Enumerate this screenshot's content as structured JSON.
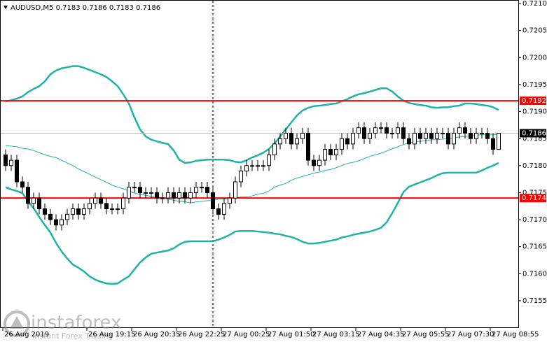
{
  "chart_data": {
    "type": "candlestick",
    "title": "AUDUSD,M5  0.7183 0.7186 0.7183 0.7186",
    "candle_color": "#000000",
    "open": [
      0.7182,
      0.718,
      0.7181,
      0.7177,
      0.7176,
      0.7173,
      0.7174,
      0.7172,
      0.7171,
      0.717,
      0.7169,
      0.717,
      0.7171,
      0.7172,
      0.7171,
      0.7172,
      0.7173,
      0.7174,
      0.7173,
      0.7172,
      0.7172,
      0.7172,
      0.7174,
      0.7176,
      0.7176,
      0.7175,
      0.7175,
      0.7175,
      0.7174,
      0.7174,
      0.7175,
      0.7174,
      0.7175,
      0.7174,
      0.7175,
      0.7176,
      0.7176,
      0.7175,
      0.7172,
      0.7171,
      0.7173,
      0.7174,
      0.7177,
      0.7179,
      0.718,
      0.718,
      0.718,
      0.718,
      0.7182,
      0.7184,
      0.7185,
      0.7186,
      0.7184,
      0.7185,
      0.7186,
      0.7181,
      0.718,
      0.7181,
      0.7183,
      0.7182,
      0.7183,
      0.7185,
      0.7184,
      0.7186,
      0.7187,
      0.7185,
      0.7186,
      0.7187,
      0.7187,
      0.7186,
      0.7186,
      0.7187,
      0.7185,
      0.7184,
      0.7186,
      0.7185,
      0.7186,
      0.7185,
      0.7186,
      0.7186,
      0.7184,
      0.7186,
      0.7187,
      0.7186,
      0.7185,
      0.7186,
      0.7186,
      0.7185,
      0.7183
    ],
    "high": [
      0.7183,
      0.7182,
      0.7182,
      0.7178,
      0.7177,
      0.7175,
      0.7175,
      0.7173,
      0.7172,
      0.7171,
      0.7171,
      0.7172,
      0.7173,
      0.7173,
      0.7173,
      0.7174,
      0.7175,
      0.7175,
      0.7174,
      0.7173,
      0.7173,
      0.7175,
      0.7177,
      0.7177,
      0.7177,
      0.7176,
      0.7176,
      0.7176,
      0.7175,
      0.7176,
      0.7176,
      0.7176,
      0.7176,
      0.7176,
      0.7177,
      0.7177,
      0.7177,
      0.7176,
      0.7173,
      0.7174,
      0.7175,
      0.7178,
      0.718,
      0.7181,
      0.7181,
      0.7181,
      0.7181,
      0.7183,
      0.7185,
      0.7186,
      0.7187,
      0.7187,
      0.7186,
      0.7187,
      0.7187,
      0.7182,
      0.7182,
      0.7184,
      0.7184,
      0.7184,
      0.7186,
      0.7186,
      0.7187,
      0.7188,
      0.7188,
      0.7187,
      0.7188,
      0.7188,
      0.7188,
      0.7187,
      0.7188,
      0.7188,
      0.7186,
      0.7187,
      0.7187,
      0.7187,
      0.7187,
      0.7187,
      0.7187,
      0.7187,
      0.7187,
      0.7188,
      0.7188,
      0.7187,
      0.7187,
      0.7187,
      0.7187,
      0.7186,
      0.7186
    ],
    "low": [
      0.7179,
      0.7179,
      0.7176,
      0.7175,
      0.7172,
      0.7172,
      0.7171,
      0.717,
      0.7169,
      0.7168,
      0.7168,
      0.7169,
      0.717,
      0.717,
      0.717,
      0.7171,
      0.7172,
      0.7172,
      0.7171,
      0.7171,
      0.7171,
      0.7171,
      0.7173,
      0.7175,
      0.7174,
      0.7174,
      0.7174,
      0.7173,
      0.7173,
      0.7173,
      0.7173,
      0.7173,
      0.7173,
      0.7173,
      0.7174,
      0.7175,
      0.7174,
      0.7171,
      0.717,
      0.717,
      0.7172,
      0.7173,
      0.7176,
      0.7178,
      0.7179,
      0.7179,
      0.7179,
      0.7179,
      0.7181,
      0.7183,
      0.7184,
      0.7183,
      0.7183,
      0.7184,
      0.718,
      0.7179,
      0.7179,
      0.718,
      0.7181,
      0.7181,
      0.7182,
      0.7183,
      0.7183,
      0.7185,
      0.7184,
      0.7184,
      0.7185,
      0.7186,
      0.7185,
      0.7185,
      0.7185,
      0.7184,
      0.7183,
      0.7183,
      0.7184,
      0.7184,
      0.7184,
      0.7184,
      0.7185,
      0.7183,
      0.7183,
      0.7185,
      0.7185,
      0.7184,
      0.7184,
      0.7185,
      0.7184,
      0.7182,
      0.7183
    ],
    "close": [
      0.718,
      0.7181,
      0.7177,
      0.7176,
      0.7173,
      0.7174,
      0.7172,
      0.7171,
      0.717,
      0.7169,
      0.717,
      0.7171,
      0.7172,
      0.7171,
      0.7172,
      0.7173,
      0.7174,
      0.7173,
      0.7172,
      0.7172,
      0.7172,
      0.7174,
      0.7176,
      0.7176,
      0.7175,
      0.7175,
      0.7175,
      0.7174,
      0.7174,
      0.7175,
      0.7174,
      0.7175,
      0.7174,
      0.7175,
      0.7176,
      0.7176,
      0.7175,
      0.7172,
      0.7171,
      0.7173,
      0.7174,
      0.7177,
      0.7179,
      0.718,
      0.718,
      0.718,
      0.718,
      0.7182,
      0.7184,
      0.7185,
      0.7186,
      0.7184,
      0.7185,
      0.7186,
      0.7181,
      0.718,
      0.7181,
      0.7183,
      0.7182,
      0.7183,
      0.7185,
      0.7184,
      0.7186,
      0.7187,
      0.7185,
      0.7186,
      0.7187,
      0.7187,
      0.7186,
      0.7186,
      0.7187,
      0.7185,
      0.7184,
      0.7186,
      0.7185,
      0.7186,
      0.7185,
      0.7186,
      0.7186,
      0.7184,
      0.7186,
      0.7187,
      0.7186,
      0.7185,
      0.7186,
      0.7186,
      0.7185,
      0.7183,
      0.7186
    ],
    "bands": {
      "color": "#20b2aa",
      "upper": [
        0.71919,
        0.71921,
        0.71924,
        0.71928,
        0.71936,
        0.71942,
        0.71947,
        0.71956,
        0.71969,
        0.71976,
        0.7198,
        0.71982,
        0.71984,
        0.71984,
        0.71981,
        0.71977,
        0.71973,
        0.71969,
        0.71964,
        0.71956,
        0.71947,
        0.71932,
        0.71915,
        0.71889,
        0.71867,
        0.71854,
        0.71848,
        0.71845,
        0.71842,
        0.7184,
        0.71828,
        0.71811,
        0.71805,
        0.71806,
        0.71809,
        0.7181,
        0.71811,
        0.71811,
        0.71811,
        0.71811,
        0.7181,
        0.71807,
        0.71806,
        0.7181,
        0.71815,
        0.71819,
        0.71824,
        0.71831,
        0.71841,
        0.71854,
        0.71867,
        0.7188,
        0.71893,
        0.71902,
        0.71907,
        0.7191,
        0.71911,
        0.71912,
        0.71914,
        0.71915,
        0.71919,
        0.71923,
        0.71928,
        0.71932,
        0.71934,
        0.71937,
        0.7194,
        0.71943,
        0.71943,
        0.71937,
        0.71928,
        0.7192,
        0.71916,
        0.71914,
        0.71912,
        0.71911,
        0.71908,
        0.71907,
        0.71908,
        0.71908,
        0.7191,
        0.71911,
        0.71915,
        0.71915,
        0.71914,
        0.71912,
        0.71911,
        0.71908,
        0.71903
      ],
      "middle": [
        0.71837,
        0.71836,
        0.71835,
        0.71832,
        0.71831,
        0.71828,
        0.71824,
        0.7182,
        0.71817,
        0.71815,
        0.7181,
        0.71805,
        0.718,
        0.71794,
        0.71789,
        0.71784,
        0.71779,
        0.71774,
        0.71769,
        0.71764,
        0.7176,
        0.71757,
        0.71753,
        0.71749,
        0.71747,
        0.71745,
        0.71743,
        0.71742,
        0.7174,
        0.71738,
        0.71736,
        0.71734,
        0.71733,
        0.71731,
        0.71733,
        0.71734,
        0.71735,
        0.71736,
        0.71738,
        0.71738,
        0.71739,
        0.7174,
        0.71742,
        0.71742,
        0.71744,
        0.71747,
        0.71749,
        0.71753,
        0.7176,
        0.71764,
        0.71767,
        0.71773,
        0.71777,
        0.7178,
        0.71783,
        0.71786,
        0.71788,
        0.71791,
        0.71793,
        0.71796,
        0.718,
        0.71804,
        0.71806,
        0.71809,
        0.71813,
        0.71817,
        0.7182,
        0.71823,
        0.71827,
        0.71831,
        0.71835,
        0.71839,
        0.71842,
        0.71844,
        0.71845,
        0.71846,
        0.71848,
        0.71848,
        0.71849,
        0.7185,
        0.71852,
        0.71853,
        0.71854,
        0.71855,
        0.71857,
        0.71857,
        0.71857,
        0.71857,
        0.71858
      ],
      "lower": [
        0.7176,
        0.71756,
        0.71753,
        0.71749,
        0.71734,
        0.71721,
        0.71705,
        0.7169,
        0.71676,
        0.71657,
        0.71641,
        0.71628,
        0.71617,
        0.71611,
        0.71604,
        0.71595,
        0.71589,
        0.71585,
        0.71582,
        0.71581,
        0.71582,
        0.71589,
        0.71595,
        0.71608,
        0.71621,
        0.7163,
        0.71637,
        0.71639,
        0.71641,
        0.71643,
        0.71647,
        0.71654,
        0.71659,
        0.7166,
        0.7166,
        0.7166,
        0.7166,
        0.7166,
        0.71663,
        0.71667,
        0.71672,
        0.71678,
        0.71679,
        0.71679,
        0.71679,
        0.71678,
        0.71677,
        0.71676,
        0.71674,
        0.71673,
        0.7167,
        0.71668,
        0.71664,
        0.71659,
        0.71656,
        0.71656,
        0.71657,
        0.71659,
        0.71661,
        0.71663,
        0.71667,
        0.71669,
        0.71672,
        0.71674,
        0.71676,
        0.71678,
        0.71681,
        0.71685,
        0.71695,
        0.71712,
        0.71731,
        0.71751,
        0.71761,
        0.71765,
        0.71769,
        0.71773,
        0.71777,
        0.71782,
        0.71786,
        0.71787,
        0.71787,
        0.71787,
        0.71787,
        0.71787,
        0.71787,
        0.71791,
        0.71796,
        0.718,
        0.71805
      ]
    },
    "levels": [
      {
        "value": 0.7192,
        "color": "#ff0000"
      },
      {
        "value": 0.7174,
        "color": "#ff0000"
      }
    ],
    "last_price": {
      "value": 0.7186,
      "color": "#000000"
    },
    "separator": 37,
    "ylim": [
      0.715,
      0.721
    ],
    "yticks": [
      0.7155,
      {
        "value": 0.716,
        "label": "0.7160"
      },
      0.7165,
      {
        "value": 0.717,
        "label": "0.7170"
      },
      0.7175,
      {
        "value": 0.718,
        "label": "0.7180"
      },
      0.7185,
      {
        "value": 0.719,
        "label": "0.7190"
      },
      0.7195,
      {
        "value": 0.72,
        "label": "0.7200"
      },
      0.7205,
      {
        "value": 0.721,
        "label": "0.7210"
      }
    ],
    "xticks": [
      {
        "value": 0,
        "label": "26 Aug 2019"
      },
      {
        "value": 15,
        "label": "26 Aug 19:15"
      },
      {
        "value": 23,
        "label": "26 Aug 20:35"
      },
      {
        "value": 31,
        "label": "26 Aug 22:25"
      },
      {
        "value": 39,
        "label": "27 Aug 00:25"
      },
      {
        "value": 47,
        "label": "27 Aug 01:50"
      },
      {
        "value": 55,
        "label": "27 Aug 03:15"
      },
      {
        "value": 63,
        "label": "27 Aug 04:35"
      },
      {
        "value": 71,
        "label": "27 Aug 05:55"
      },
      {
        "value": 79,
        "label": "27 Aug 07:30"
      },
      {
        "value": 87,
        "label": "27 Aug 08:55"
      }
    ],
    "watermark": {
      "name": "instaforex",
      "tagline": "Instant Forex Trading"
    }
  }
}
